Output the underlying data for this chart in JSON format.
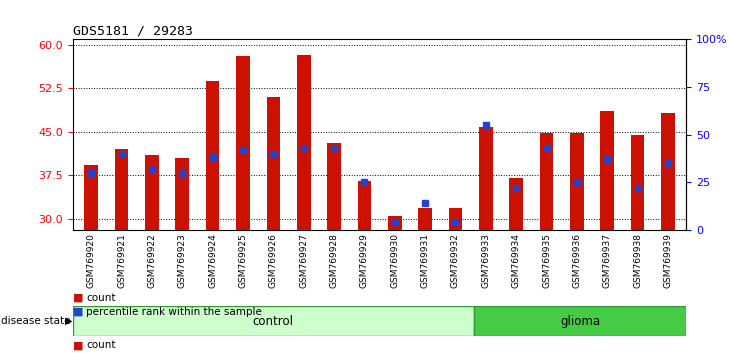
{
  "title": "GDS5181 / 29283",
  "samples": [
    "GSM769920",
    "GSM769921",
    "GSM769922",
    "GSM769923",
    "GSM769924",
    "GSM769925",
    "GSM769926",
    "GSM769927",
    "GSM769928",
    "GSM769929",
    "GSM769930",
    "GSM769931",
    "GSM769932",
    "GSM769933",
    "GSM769934",
    "GSM769935",
    "GSM769936",
    "GSM769937",
    "GSM769938",
    "GSM769939"
  ],
  "count_values": [
    39.2,
    42.0,
    41.0,
    40.5,
    53.8,
    58.0,
    51.0,
    58.2,
    43.0,
    36.5,
    30.5,
    31.8,
    31.8,
    45.8,
    37.0,
    44.8,
    44.8,
    48.5,
    44.5,
    48.2
  ],
  "percentile_pct": [
    30,
    40,
    32,
    30,
    38,
    42,
    40,
    43,
    43,
    25,
    4,
    14,
    4,
    55,
    22,
    43,
    25,
    37,
    22,
    35
  ],
  "control_count": 13,
  "ylim_left": [
    28,
    61
  ],
  "ylim_right": [
    0,
    100
  ],
  "yticks_left": [
    30,
    37.5,
    45,
    52.5,
    60
  ],
  "yticks_right": [
    0,
    25,
    50,
    75,
    100
  ],
  "bar_color": "#CC1100",
  "dot_color": "#2244CC",
  "bar_width": 0.45,
  "control_bg": "#CCFFCC",
  "glioma_bg": "#44CC44",
  "legend_count_label": "count",
  "legend_pct_label": "percentile rank within the sample"
}
